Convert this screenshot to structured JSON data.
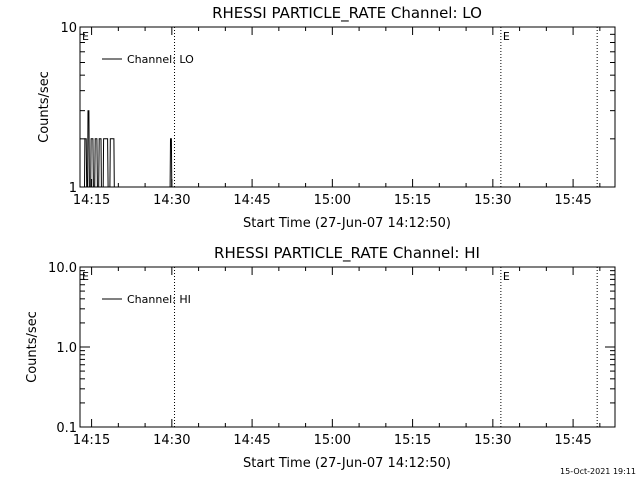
{
  "chart_data": [
    {
      "type": "line",
      "title": "RHESSI PARTICLE_RATE Channel: LO",
      "xlabel": "Start Time (27-Jun-07 14:12:50)",
      "ylabel": "Counts/sec",
      "yscale": "log",
      "ylim": [
        1,
        10
      ],
      "y_tick_labels": [
        "1",
        "10"
      ],
      "xlim": [
        "14:12:50",
        "15:52:50"
      ],
      "x_tick_labels": [
        "14:15",
        "14:30",
        "14:45",
        "15:00",
        "15:15",
        "15:30",
        "15:45"
      ],
      "legend": {
        "placement": "top-left",
        "entries": [
          "Channel: LO"
        ]
      },
      "vertical_markers": [
        {
          "time": "14:12:50",
          "label": "E"
        },
        {
          "time": "14:30:30",
          "label": ""
        },
        {
          "time": "15:31:30",
          "label": "E"
        },
        {
          "time": "15:49:30",
          "label": ""
        }
      ],
      "series": [
        {
          "name": "Channel: LO",
          "points": [
            [
              "14:13:40",
              1
            ],
            [
              "14:13:45",
              2
            ],
            [
              "14:14:00",
              2
            ],
            [
              "14:14:05",
              1
            ],
            [
              "14:14:15",
              1
            ],
            [
              "14:14:20",
              3
            ],
            [
              "14:14:30",
              3
            ],
            [
              "14:14:35",
              1
            ],
            [
              "14:14:50",
              1
            ],
            [
              "14:14:55",
              2
            ],
            [
              "14:15:15",
              2
            ],
            [
              "14:15:20",
              1
            ],
            [
              "14:15:35",
              1
            ],
            [
              "14:15:40",
              2
            ],
            [
              "14:16:00",
              2
            ],
            [
              "14:16:05",
              1
            ],
            [
              "14:16:20",
              1
            ],
            [
              "14:16:25",
              2
            ],
            [
              "14:16:45",
              2
            ],
            [
              "14:16:50",
              1
            ],
            [
              "14:17:10",
              1
            ],
            [
              "14:17:15",
              2
            ],
            [
              "14:18:00",
              2
            ],
            [
              "14:18:05",
              1
            ],
            [
              "14:18:25",
              1
            ],
            [
              "14:18:30",
              2
            ],
            [
              "14:19:10",
              2
            ],
            [
              "14:19:15",
              1
            ],
            [
              "14:29:40",
              1
            ],
            [
              "14:29:45",
              2
            ],
            [
              "14:29:55",
              2
            ],
            [
              "14:30:00",
              1
            ]
          ]
        }
      ]
    },
    {
      "type": "line",
      "title": "RHESSI PARTICLE_RATE Channel: HI",
      "xlabel": "Start Time (27-Jun-07 14:12:50)",
      "ylabel": "Counts/sec",
      "yscale": "log",
      "ylim": [
        0.1,
        10
      ],
      "y_tick_labels": [
        "0.1",
        "1.0",
        "10.0"
      ],
      "xlim": [
        "14:12:50",
        "15:52:50"
      ],
      "x_tick_labels": [
        "14:15",
        "14:30",
        "14:45",
        "15:00",
        "15:15",
        "15:30",
        "15:45"
      ],
      "legend": {
        "placement": "top-left",
        "entries": [
          "Channel: HI"
        ]
      },
      "vertical_markers": [
        {
          "time": "14:12:50",
          "label": "E"
        },
        {
          "time": "14:30:30",
          "label": ""
        },
        {
          "time": "15:31:30",
          "label": "E"
        },
        {
          "time": "15:49:30",
          "label": ""
        }
      ],
      "series": [
        {
          "name": "Channel: HI",
          "points": []
        }
      ]
    }
  ],
  "footer": {
    "timestamp": "15-Oct-2021 19:11"
  }
}
